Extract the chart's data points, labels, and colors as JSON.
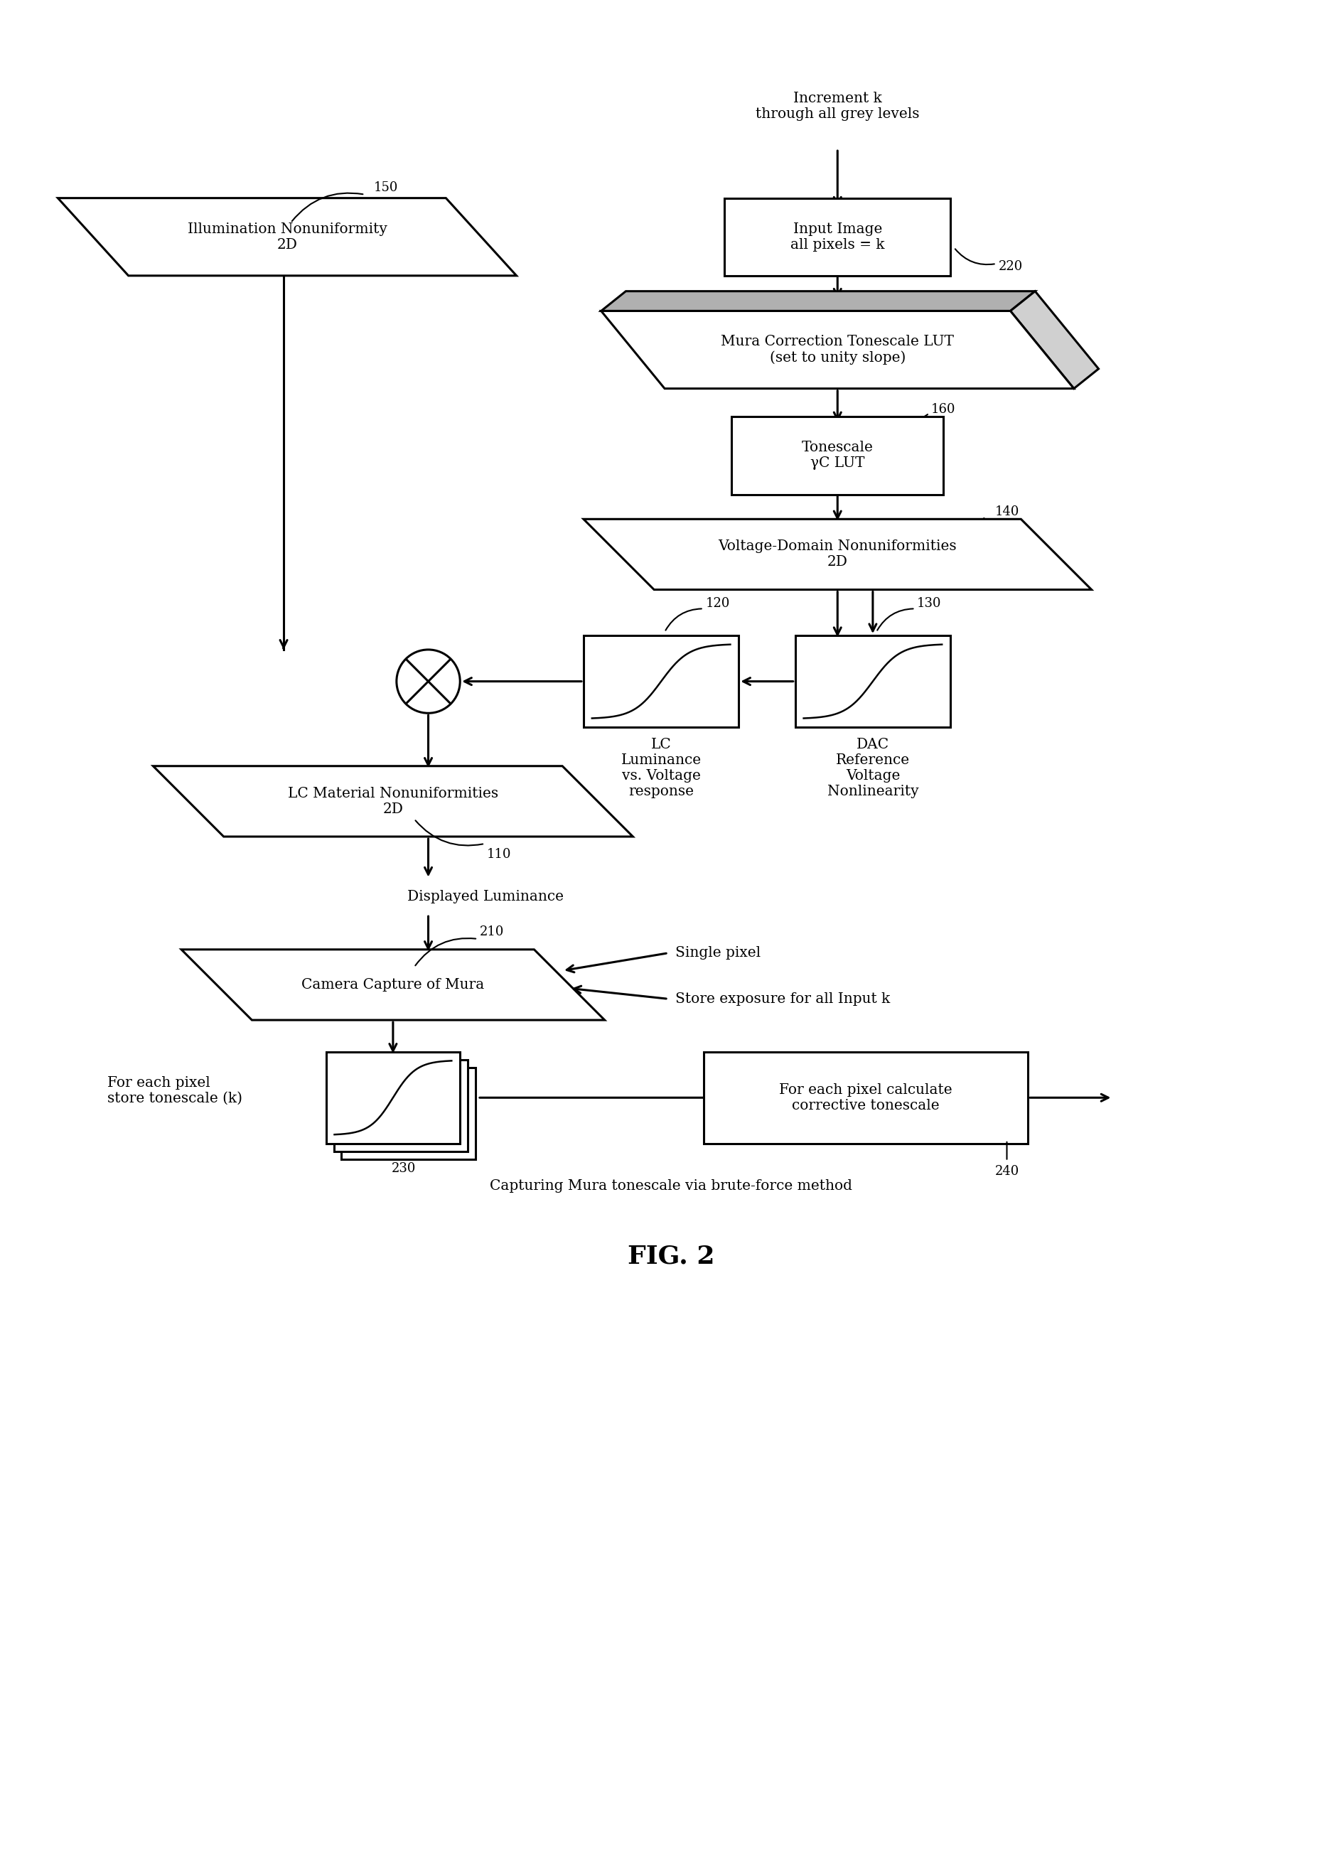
{
  "title": "FIG. 2",
  "caption": "Capturing Mura tonescale via brute-force method",
  "bg_color": "#ffffff",
  "increment_text": "Increment k\nthrough all grey levels",
  "displayed_luminance_text": "Displayed Luminance",
  "single_pixel_text": "Single pixel",
  "store_exposure_text": "Store exposure for all Input k",
  "for_each_pixel_left": "For each pixel\nstore tonescale (k)",
  "for_each_pixel_right": "For each pixel calculate\ncorrective tonescale",
  "lc_label": "LC\nLuminance\nvs. Voltage\nresponse",
  "dac_label": "DAC\nReference\nVoltage\nNonlinearity"
}
